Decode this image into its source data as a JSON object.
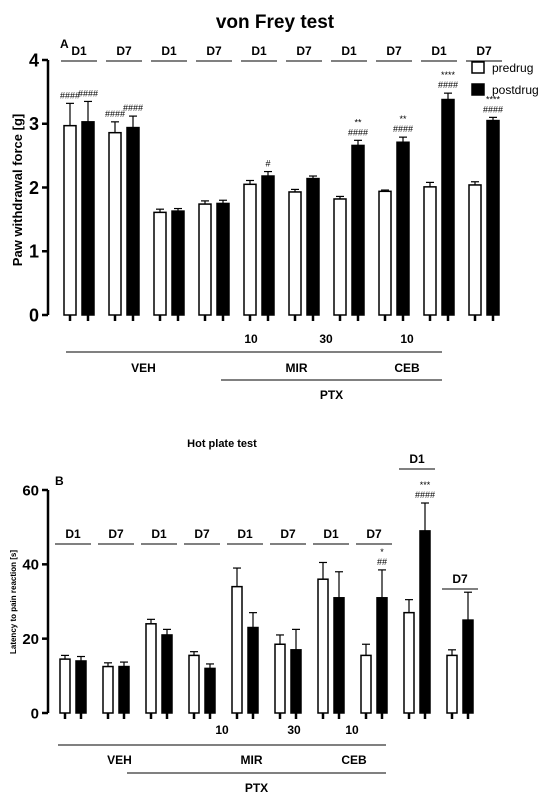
{
  "chart_data": [
    {
      "type": "bar",
      "panel_label": "A",
      "title": "von Frey test",
      "ylabel": "Paw withdrawal force [g]",
      "ylim": [
        0,
        4
      ],
      "yticks": [
        "0",
        "1",
        "2",
        "3",
        "4"
      ],
      "legend": {
        "placement": "top-right",
        "entries": [
          "predrug",
          "postdrug"
        ]
      },
      "series_colors": {
        "predrug": "#ffffff",
        "postdrug": "#000000"
      },
      "day_labels": [
        "D1",
        "D7",
        "D1",
        "D7",
        "D1",
        "D7",
        "D1",
        "D7",
        "D1",
        "D7"
      ],
      "bars": [
        {
          "value": 2.97,
          "err": 0.35,
          "series": "predrug",
          "sig": [
            "####"
          ]
        },
        {
          "value": 3.03,
          "err": 0.32,
          "series": "postdrug",
          "sig": [
            "####"
          ]
        },
        {
          "value": 2.86,
          "err": 0.17,
          "series": "predrug",
          "sig": [
            "####"
          ]
        },
        {
          "value": 2.94,
          "err": 0.18,
          "series": "postdrug",
          "sig": [
            "####"
          ]
        },
        {
          "value": 1.61,
          "err": 0.05,
          "series": "predrug",
          "sig": []
        },
        {
          "value": 1.63,
          "err": 0.04,
          "series": "postdrug",
          "sig": []
        },
        {
          "value": 1.74,
          "err": 0.05,
          "series": "predrug",
          "sig": []
        },
        {
          "value": 1.75,
          "err": 0.05,
          "series": "postdrug",
          "sig": []
        },
        {
          "value": 2.05,
          "err": 0.06,
          "series": "predrug",
          "sig": []
        },
        {
          "value": 2.18,
          "err": 0.07,
          "series": "postdrug",
          "sig": [
            "#"
          ]
        },
        {
          "value": 1.93,
          "err": 0.04,
          "series": "predrug",
          "sig": []
        },
        {
          "value": 2.14,
          "err": 0.04,
          "series": "postdrug",
          "sig": []
        },
        {
          "value": 1.82,
          "err": 0.04,
          "series": "predrug",
          "sig": []
        },
        {
          "value": 2.66,
          "err": 0.08,
          "series": "postdrug",
          "sig": [
            "**",
            "####"
          ]
        },
        {
          "value": 1.94,
          "err": 0.02,
          "series": "predrug",
          "sig": []
        },
        {
          "value": 2.71,
          "err": 0.08,
          "series": "postdrug",
          "sig": [
            "**",
            "####"
          ]
        },
        {
          "value": 2.01,
          "err": 0.07,
          "series": "predrug",
          "sig": []
        },
        {
          "value": 3.38,
          "err": 0.1,
          "series": "postdrug",
          "sig": [
            "****",
            "####"
          ]
        },
        {
          "value": 2.04,
          "err": 0.05,
          "series": "predrug",
          "sig": []
        },
        {
          "value": 3.05,
          "err": 0.05,
          "series": "postdrug",
          "sig": [
            "****",
            "####"
          ]
        }
      ],
      "dose_labels": [
        "10",
        "30",
        "10"
      ],
      "group_labels": [
        "VEH",
        "MIR",
        "CEB"
      ],
      "super_label": "PTX"
    },
    {
      "type": "bar",
      "panel_label": "B",
      "title": "Hot plate test",
      "ylabel": "Latency to pain reaction [s]",
      "ylim": [
        0,
        60
      ],
      "yticks": [
        "0",
        "20",
        "40",
        "60"
      ],
      "series_colors": {
        "predrug": "#ffffff",
        "postdrug": "#000000"
      },
      "day_labels": [
        "D1",
        "D7",
        "D1",
        "D7",
        "D1",
        "D7",
        "D1",
        "D7",
        "D1",
        "D7"
      ],
      "bars": [
        {
          "value": 14.5,
          "err": 1.0,
          "series": "predrug",
          "sig": []
        },
        {
          "value": 14.0,
          "err": 1.2,
          "series": "postdrug",
          "sig": []
        },
        {
          "value": 12.5,
          "err": 1.0,
          "series": "predrug",
          "sig": []
        },
        {
          "value": 12.5,
          "err": 1.2,
          "series": "postdrug",
          "sig": []
        },
        {
          "value": 24.0,
          "err": 1.2,
          "series": "predrug",
          "sig": []
        },
        {
          "value": 21.0,
          "err": 1.5,
          "series": "postdrug",
          "sig": []
        },
        {
          "value": 15.5,
          "err": 1.0,
          "series": "predrug",
          "sig": []
        },
        {
          "value": 12.0,
          "err": 1.2,
          "series": "postdrug",
          "sig": []
        },
        {
          "value": 34.0,
          "err": 5.0,
          "series": "predrug",
          "sig": []
        },
        {
          "value": 23.0,
          "err": 4.0,
          "series": "postdrug",
          "sig": []
        },
        {
          "value": 18.5,
          "err": 2.5,
          "series": "predrug",
          "sig": []
        },
        {
          "value": 17.0,
          "err": 5.5,
          "series": "postdrug",
          "sig": []
        },
        {
          "value": 36.0,
          "err": 4.5,
          "series": "predrug",
          "sig": []
        },
        {
          "value": 31.0,
          "err": 7.0,
          "series": "postdrug",
          "sig": []
        },
        {
          "value": 15.5,
          "err": 3.0,
          "series": "predrug",
          "sig": []
        },
        {
          "value": 31.0,
          "err": 7.5,
          "series": "postdrug",
          "sig": [
            "*",
            "##"
          ]
        },
        {
          "value": 27.0,
          "err": 3.5,
          "series": "predrug",
          "sig": []
        },
        {
          "value": 49.0,
          "err": 7.5,
          "series": "postdrug",
          "sig": [
            "***",
            "####"
          ]
        },
        {
          "value": 15.5,
          "err": 1.5,
          "series": "predrug",
          "sig": []
        },
        {
          "value": 25.0,
          "err": 7.5,
          "series": "postdrug",
          "sig": []
        }
      ],
      "dose_labels": [
        "10",
        "30",
        "10"
      ],
      "group_labels": [
        "VEH",
        "MIR",
        "CEB"
      ],
      "super_label": "PTX"
    }
  ]
}
